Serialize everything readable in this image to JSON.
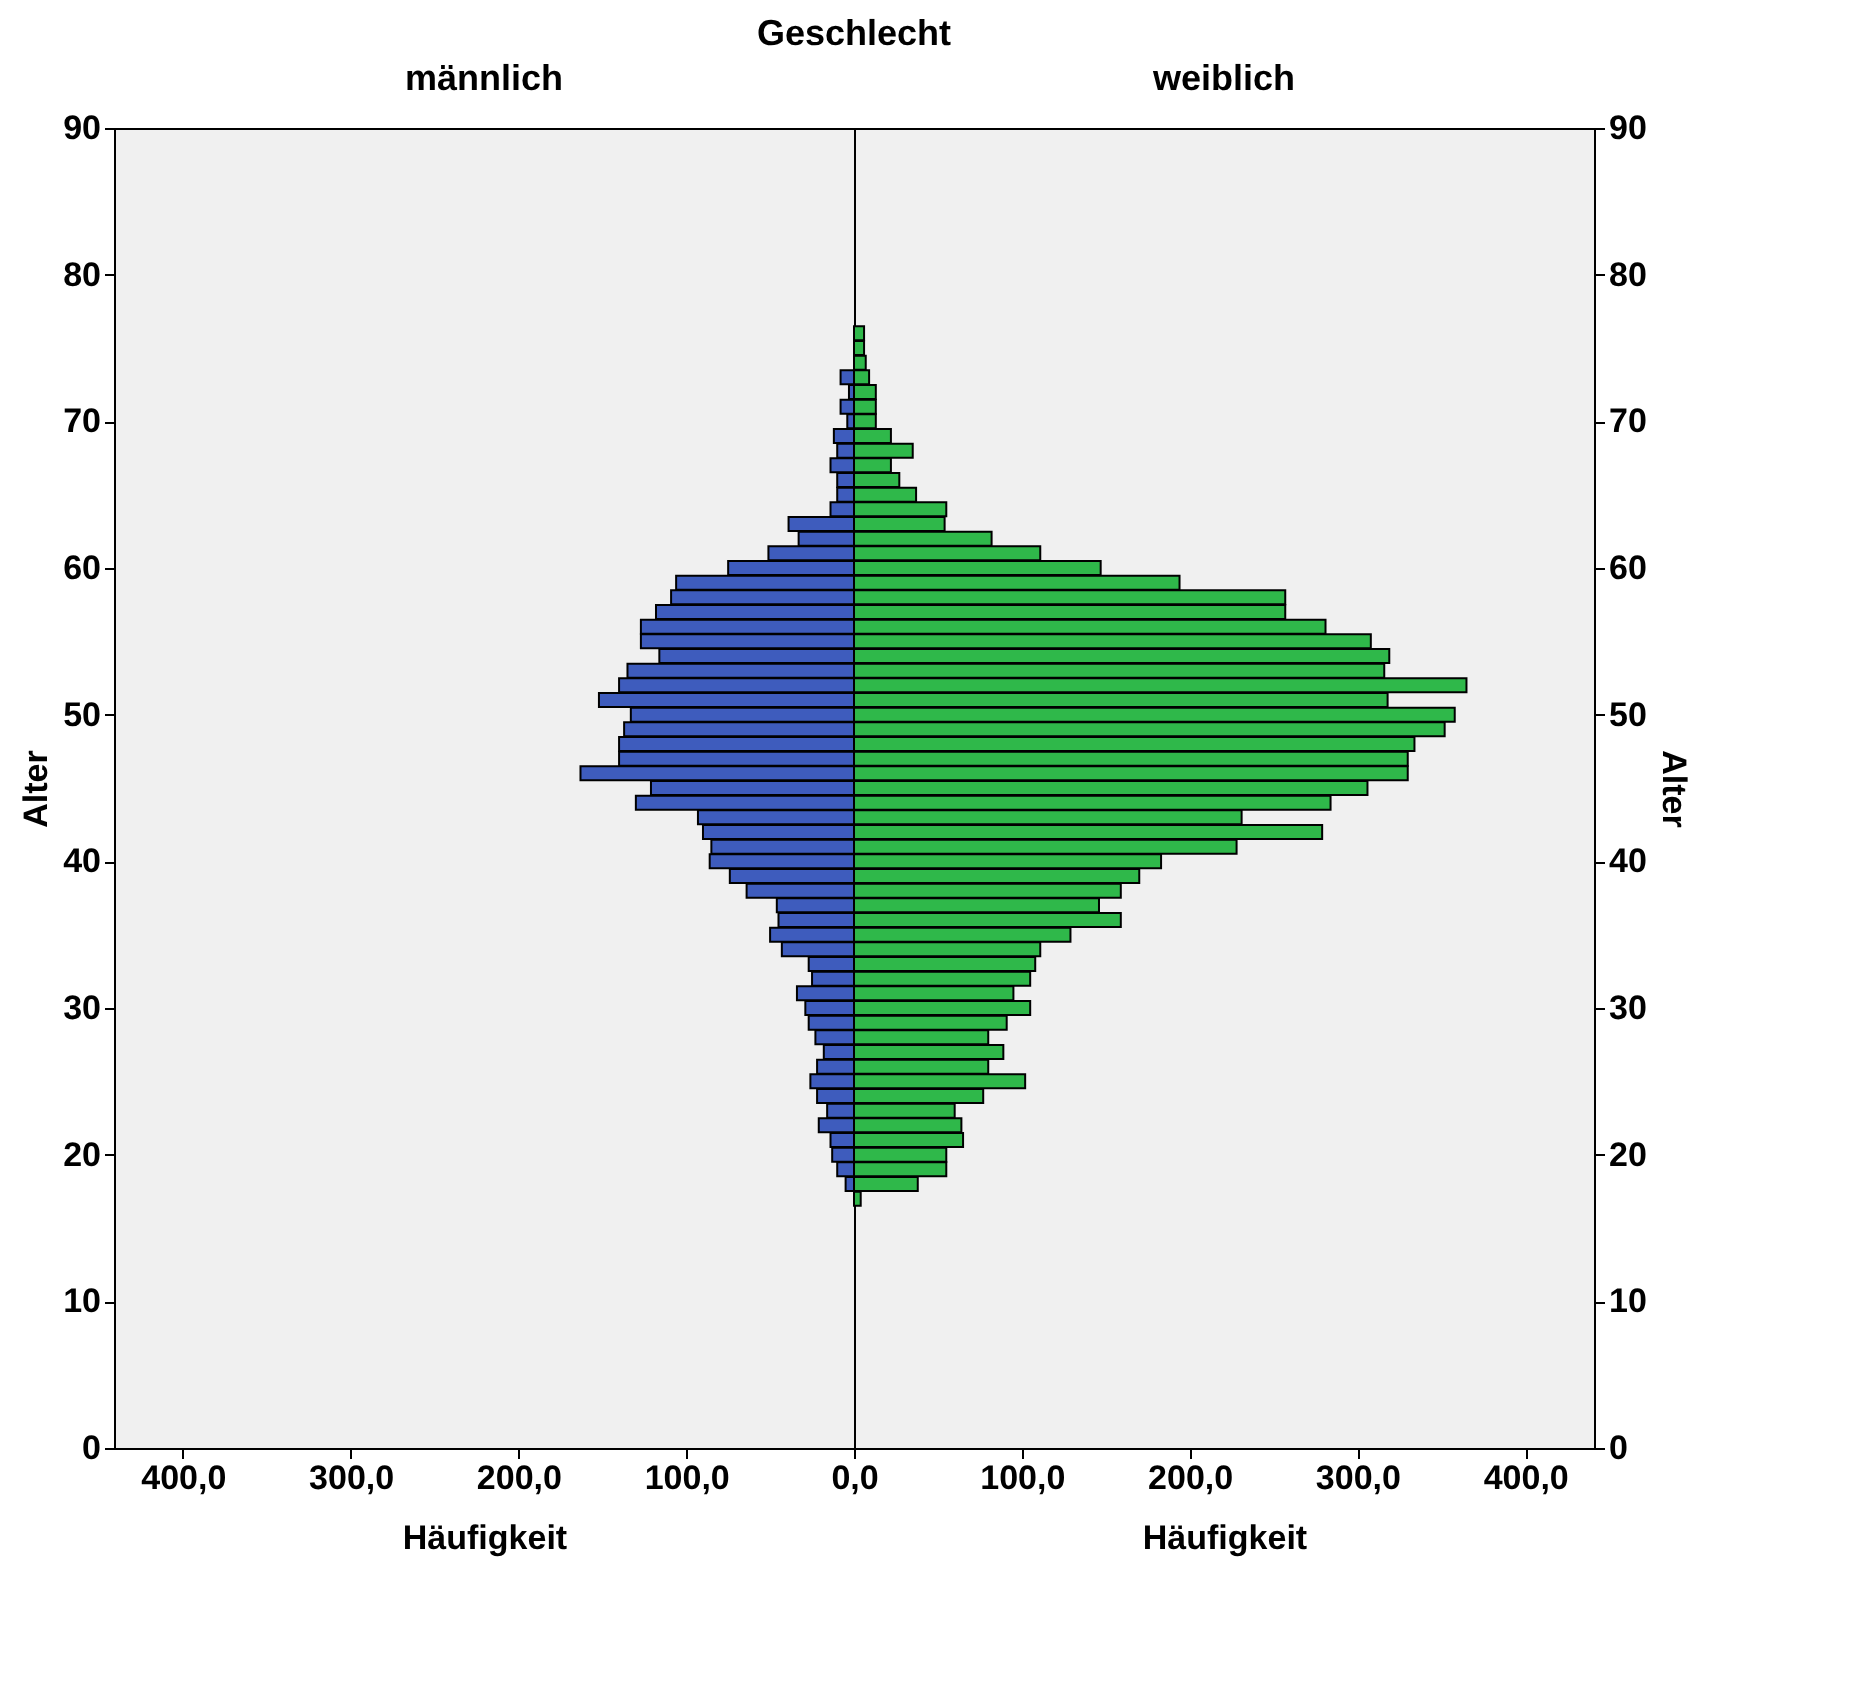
{
  "chart_data": [
    {
      "type": "bar",
      "orientation": "horizontal",
      "legend_title": "Geschlecht",
      "title": "männlich",
      "xlabel": "Häufigkeit",
      "ylabel": "Alter",
      "x": [
        18,
        19,
        20,
        21,
        22,
        23,
        24,
        25,
        26,
        27,
        28,
        29,
        30,
        31,
        32,
        33,
        34,
        35,
        36,
        37,
        38,
        39,
        40,
        41,
        42,
        43,
        44,
        45,
        46,
        47,
        48,
        49,
        50,
        51,
        52,
        53,
        54,
        55,
        56,
        57,
        58,
        59,
        60,
        61,
        62,
        63,
        64,
        65,
        66,
        67,
        68,
        69,
        70,
        71,
        72,
        73
      ],
      "series": [
        {
          "color": "#3e5cbd",
          "values": [
            5,
            10,
            13,
            14,
            21,
            16,
            22,
            26,
            22,
            18,
            23,
            27,
            29,
            34,
            25,
            27,
            43,
            50,
            45,
            46,
            64,
            74,
            86,
            85,
            90,
            93,
            130,
            121,
            163,
            140,
            140,
            137,
            133,
            152,
            140,
            135,
            116,
            127,
            127,
            118,
            109,
            106,
            75,
            51,
            33,
            39,
            14,
            10,
            10,
            14,
            10,
            12,
            4,
            8,
            3,
            8
          ]
        }
      ],
      "xlim": [
        441,
        0
      ],
      "xticks": [
        {
          "value": 400,
          "label": "400,0"
        },
        {
          "value": 300,
          "label": "300,0"
        },
        {
          "value": 200,
          "label": "200,0"
        },
        {
          "value": 100,
          "label": "100,0"
        },
        {
          "value": 0,
          "label": "0,0"
        }
      ],
      "ylim": [
        0,
        90
      ],
      "yticks": [
        0,
        10,
        20,
        30,
        40,
        50,
        60,
        70,
        80,
        90
      ]
    },
    {
      "type": "bar",
      "orientation": "horizontal",
      "title": "weiblich",
      "xlabel": "Häufigkeit",
      "ylabel": "Alter",
      "x": [
        17,
        18,
        19,
        20,
        21,
        22,
        23,
        24,
        25,
        26,
        27,
        28,
        29,
        30,
        31,
        32,
        33,
        34,
        35,
        36,
        37,
        38,
        39,
        40,
        41,
        42,
        43,
        44,
        45,
        46,
        47,
        48,
        49,
        50,
        51,
        52,
        53,
        54,
        55,
        56,
        57,
        58,
        59,
        60,
        61,
        62,
        63,
        64,
        65,
        66,
        67,
        68,
        69,
        70,
        71,
        72,
        73,
        74,
        75,
        76
      ],
      "series": [
        {
          "color": "#2fb84a",
          "values": [
            4,
            38,
            55,
            55,
            65,
            64,
            60,
            77,
            102,
            80,
            89,
            80,
            91,
            105,
            95,
            105,
            108,
            111,
            129,
            159,
            146,
            159,
            170,
            183,
            228,
            279,
            231,
            284,
            306,
            330,
            330,
            334,
            352,
            358,
            318,
            365,
            316,
            319,
            308,
            281,
            257,
            257,
            194,
            147,
            111,
            82,
            54,
            55,
            37,
            27,
            22,
            35,
            22,
            13,
            13,
            13,
            9,
            7,
            6,
            6
          ]
        }
      ],
      "xlim": [
        0,
        441
      ],
      "xticks": [
        {
          "value": 0,
          "label": null
        },
        {
          "value": 100,
          "label": "100,0"
        },
        {
          "value": 200,
          "label": "200,0"
        },
        {
          "value": 300,
          "label": "300,0"
        },
        {
          "value": 400,
          "label": "400,0"
        }
      ],
      "ylim": [
        0,
        90
      ],
      "yticks": [
        0,
        10,
        20,
        30,
        40,
        50,
        60,
        70,
        80,
        90
      ]
    }
  ]
}
